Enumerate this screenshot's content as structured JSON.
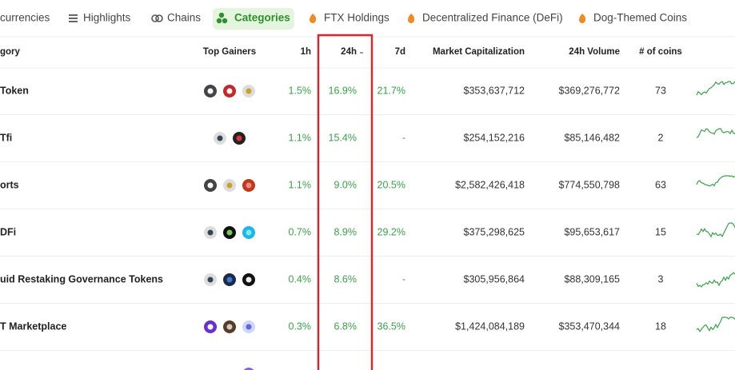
{
  "tabs": [
    "currencies",
    "Highlights",
    "Chains",
    "Categories",
    "FTX Holdings",
    "Decentralized Finance (DeFi)",
    "Dog-Themed Coins"
  ],
  "active_tab": 3,
  "table": {
    "headers": [
      "gory",
      "Top Gainers",
      "1h",
      "24h",
      "7d",
      "Market Capitalization",
      "24h Volume",
      "# of coins"
    ],
    "rows": [
      [
        "Token",
        "1.5%",
        "16.9%",
        "21.7%",
        "$353,637,712",
        "$369,276,772",
        "73"
      ],
      [
        "Tfi",
        "1.1%",
        "15.4%",
        "-",
        "$254,152,216",
        "$85,146,482",
        "2"
      ],
      [
        "orts",
        "1.1%",
        "9.0%",
        "20.5%",
        "$2,582,426,418",
        "$774,550,798",
        "63"
      ],
      [
        "DFi",
        "0.7%",
        "8.9%",
        "29.2%",
        "$375,298,625",
        "$95,653,617",
        "15"
      ],
      [
        "uid Restaking Governance Tokens",
        "0.4%",
        "8.6%",
        "-",
        "$305,956,864",
        "$88,309,165",
        "3"
      ],
      [
        "T Marketplace",
        "0.3%",
        "6.8%",
        "36.5%",
        "$1,424,084,189",
        "$353,470,344",
        "18"
      ]
    ]
  }
}
